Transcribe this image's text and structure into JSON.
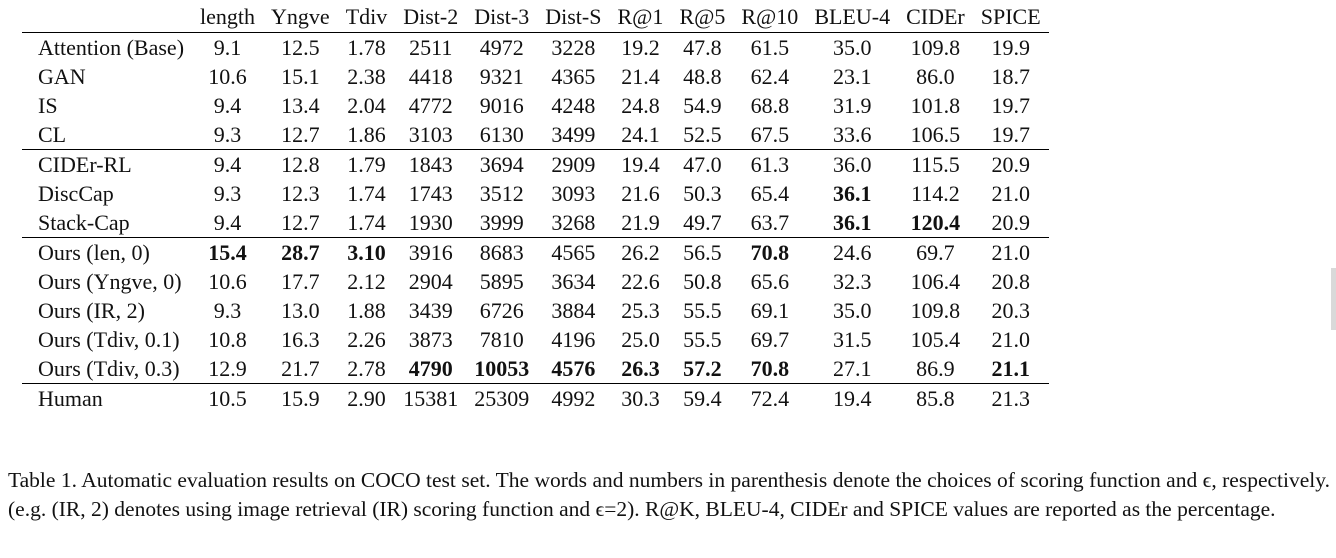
{
  "table": {
    "columns": [
      "",
      "length",
      "Yngve",
      "Tdiv",
      "Dist-2",
      "Dist-3",
      "Dist-S",
      "R@1",
      "R@5",
      "R@10",
      "BLEU-4",
      "CIDEr",
      "SPICE"
    ],
    "groups": [
      [
        {
          "method": "Attention (Base)",
          "values": [
            "9.1",
            "12.5",
            "1.78",
            "2511",
            "4972",
            "3228",
            "19.2",
            "47.8",
            "61.5",
            "35.0",
            "109.8",
            "19.9"
          ],
          "bold": []
        },
        {
          "method": "GAN",
          "values": [
            "10.6",
            "15.1",
            "2.38",
            "4418",
            "9321",
            "4365",
            "21.4",
            "48.8",
            "62.4",
            "23.1",
            "86.0",
            "18.7"
          ],
          "bold": []
        },
        {
          "method": "IS",
          "values": [
            "9.4",
            "13.4",
            "2.04",
            "4772",
            "9016",
            "4248",
            "24.8",
            "54.9",
            "68.8",
            "31.9",
            "101.8",
            "19.7"
          ],
          "bold": []
        },
        {
          "method": "CL",
          "values": [
            "9.3",
            "12.7",
            "1.86",
            "3103",
            "6130",
            "3499",
            "24.1",
            "52.5",
            "67.5",
            "33.6",
            "106.5",
            "19.7"
          ],
          "bold": []
        }
      ],
      [
        {
          "method": "CIDEr-RL",
          "values": [
            "9.4",
            "12.8",
            "1.79",
            "1843",
            "3694",
            "2909",
            "19.4",
            "47.0",
            "61.3",
            "36.0",
            "115.5",
            "20.9"
          ],
          "bold": []
        },
        {
          "method": "DiscCap",
          "values": [
            "9.3",
            "12.3",
            "1.74",
            "1743",
            "3512",
            "3093",
            "21.6",
            "50.3",
            "65.4",
            "36.1",
            "114.2",
            "21.0"
          ],
          "bold": [
            9
          ]
        },
        {
          "method": "Stack-Cap",
          "values": [
            "9.4",
            "12.7",
            "1.74",
            "1930",
            "3999",
            "3268",
            "21.9",
            "49.7",
            "63.7",
            "36.1",
            "120.4",
            "20.9"
          ],
          "bold": [
            9,
            10
          ]
        }
      ],
      [
        {
          "method": "Ours (len, 0)",
          "values": [
            "15.4",
            "28.7",
            "3.10",
            "3916",
            "8683",
            "4565",
            "26.2",
            "56.5",
            "70.8",
            "24.6",
            "69.7",
            "21.0"
          ],
          "bold": [
            0,
            1,
            2,
            8
          ]
        },
        {
          "method": "Ours (Yngve, 0)",
          "values": [
            "10.6",
            "17.7",
            "2.12",
            "2904",
            "5895",
            "3634",
            "22.6",
            "50.8",
            "65.6",
            "32.3",
            "106.4",
            "20.8"
          ],
          "bold": []
        },
        {
          "method": "Ours (IR, 2)",
          "values": [
            "9.3",
            "13.0",
            "1.88",
            "3439",
            "6726",
            "3884",
            "25.3",
            "55.5",
            "69.1",
            "35.0",
            "109.8",
            "20.3"
          ],
          "bold": []
        },
        {
          "method": "Ours (Tdiv, 0.1)",
          "values": [
            "10.8",
            "16.3",
            "2.26",
            "3873",
            "7810",
            "4196",
            "25.0",
            "55.5",
            "69.7",
            "31.5",
            "105.4",
            "21.0"
          ],
          "bold": []
        },
        {
          "method": "Ours (Tdiv, 0.3)",
          "values": [
            "12.9",
            "21.7",
            "2.78",
            "4790",
            "10053",
            "4576",
            "26.3",
            "57.2",
            "70.8",
            "27.1",
            "86.9",
            "21.1"
          ],
          "bold": [
            3,
            4,
            5,
            6,
            7,
            8,
            11
          ]
        }
      ],
      [
        {
          "method": "Human",
          "values": [
            "10.5",
            "15.9",
            "2.90",
            "15381",
            "25309",
            "4992",
            "30.3",
            "59.4",
            "72.4",
            "19.4",
            "85.8",
            "21.3"
          ],
          "bold": []
        }
      ]
    ]
  },
  "caption": "Table 1. Automatic evaluation results on COCO test set. The words and numbers in parenthesis denote the choices of scoring function and ϵ, respectively. (e.g. (IR, 2) denotes using image retrieval (IR) scoring function and ϵ=2). R@K, BLEU-4, CIDEr and SPICE values are reported as the percentage."
}
